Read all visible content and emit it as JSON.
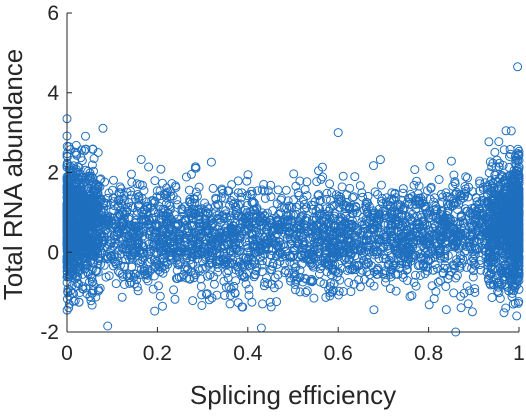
{
  "chart_data": {
    "type": "scatter",
    "title": "",
    "xlabel": "Splicing efficiency",
    "ylabel": "Total RNA abundance",
    "xlim": [
      0,
      1
    ],
    "ylim": [
      -2,
      6
    ],
    "xticks": [
      "0",
      "0.2",
      "0.4",
      "0.6",
      "0.8",
      "1"
    ],
    "yticks": [
      "-2",
      "0",
      "2",
      "4",
      "6"
    ],
    "grid": false,
    "marker": "open-circle",
    "color": "#1f6fbf",
    "n_points": 4500,
    "distribution": {
      "body_mean": 0.35,
      "body_sd": 0.65,
      "edge_mean": 0.75,
      "edge_sd": 0.9,
      "note": "dense at x near 0 and x near 1, sparse in middle"
    },
    "notable_points": [
      {
        "x": 0.997,
        "y": 4.65
      },
      {
        "x": 0.0,
        "y": 3.35
      },
      {
        "x": 0.6,
        "y": 3.0
      },
      {
        "x": 0.43,
        "y": -1.9
      },
      {
        "x": 0.86,
        "y": -2.0
      },
      {
        "x": 0.09,
        "y": -1.85
      },
      {
        "x": 0.005,
        "y": -1.3
      }
    ]
  }
}
